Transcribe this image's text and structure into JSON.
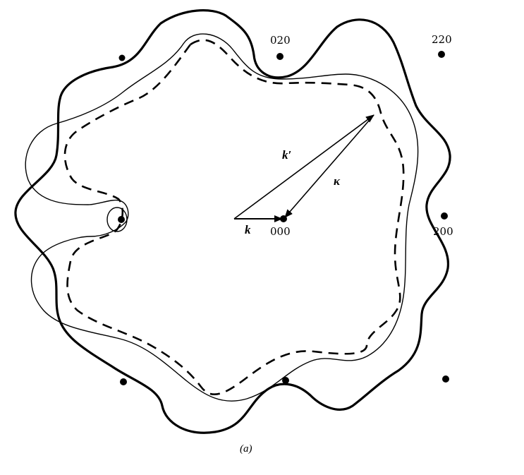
{
  "figure": {
    "caption": "(a)",
    "reciprocal_lattice_labels": {
      "p020": "020",
      "p220": "220",
      "p200": "200",
      "p000": "000"
    },
    "vector_labels": {
      "k": "k",
      "k_prime": "k′",
      "kappa": "κ"
    },
    "curves": {
      "thick_solid": "thick-solid-contour",
      "thin_solid": "thin-solid-contour",
      "dashed": "dashed-contour"
    },
    "color": "#000000"
  }
}
